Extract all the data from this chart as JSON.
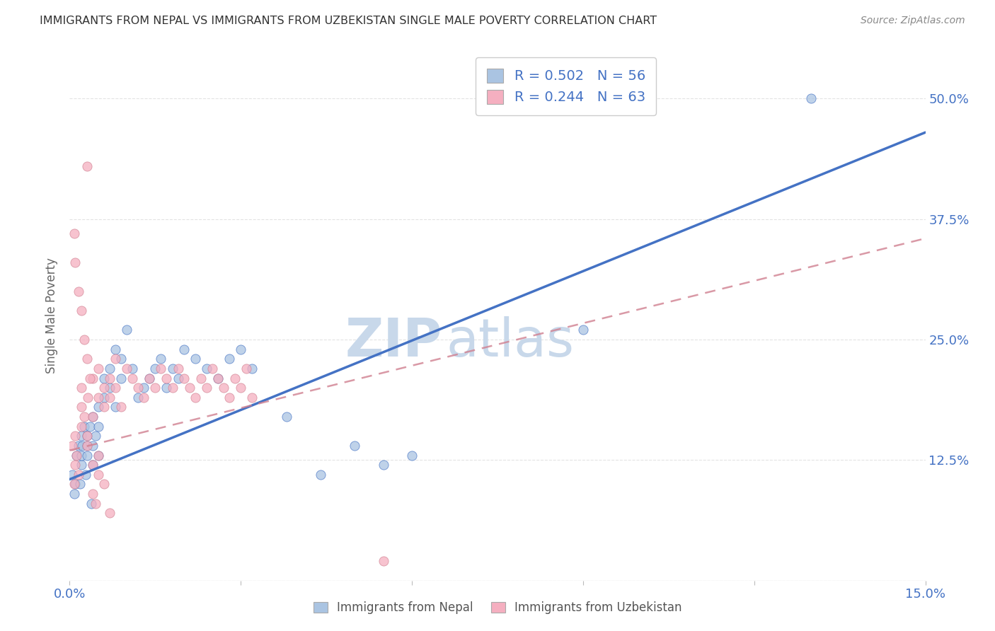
{
  "title": "IMMIGRANTS FROM NEPAL VS IMMIGRANTS FROM UZBEKISTAN SINGLE MALE POVERTY CORRELATION CHART",
  "source": "Source: ZipAtlas.com",
  "ylabel": "Single Male Poverty",
  "legend_label1": "Immigrants from Nepal",
  "legend_label2": "Immigrants from Uzbekistan",
  "r1": 0.502,
  "n1": 56,
  "r2": 0.244,
  "n2": 63,
  "color1": "#aac4e2",
  "color2": "#f5afc0",
  "line_color1": "#4472c4",
  "line_color2": "#d08090",
  "xmin": 0.0,
  "xmax": 0.15,
  "ymin": 0.0,
  "ymax": 0.55,
  "ytick_positions": [
    0.0,
    0.125,
    0.25,
    0.375,
    0.5
  ],
  "ytick_labels": [
    "",
    "12.5%",
    "25.0%",
    "37.5%",
    "50.0%"
  ],
  "xtick_positions": [
    0.0,
    0.03,
    0.06,
    0.09,
    0.12,
    0.15
  ],
  "xtick_labels": [
    "0.0%",
    "",
    "",
    "",
    "",
    "15.0%"
  ],
  "nepal_line_x0": 0.0,
  "nepal_line_y0": 0.105,
  "nepal_line_x1": 0.15,
  "nepal_line_y1": 0.465,
  "uzbek_line_x0": 0.0,
  "uzbek_line_y0": 0.135,
  "uzbek_line_x1": 0.15,
  "uzbek_line_y1": 0.355,
  "watermark": "ZIPatlas",
  "watermark_color": "#c8d8ea",
  "axis_color": "#4472c4",
  "title_color": "#333333",
  "grid_color": "#dddddd",
  "nepal_x": [
    0.0005,
    0.001,
    0.0012,
    0.0015,
    0.002,
    0.002,
    0.002,
    0.0022,
    0.0025,
    0.003,
    0.003,
    0.003,
    0.0035,
    0.004,
    0.004,
    0.004,
    0.0045,
    0.005,
    0.005,
    0.005,
    0.006,
    0.006,
    0.007,
    0.007,
    0.008,
    0.008,
    0.009,
    0.009,
    0.01,
    0.011,
    0.012,
    0.013,
    0.014,
    0.015,
    0.016,
    0.017,
    0.018,
    0.019,
    0.02,
    0.022,
    0.024,
    0.026,
    0.028,
    0.03,
    0.032,
    0.038,
    0.044,
    0.05,
    0.055,
    0.06,
    0.0008,
    0.0018,
    0.0028,
    0.0038,
    0.09,
    0.13
  ],
  "nepal_y": [
    0.11,
    0.1,
    0.13,
    0.14,
    0.12,
    0.13,
    0.15,
    0.14,
    0.16,
    0.13,
    0.14,
    0.15,
    0.16,
    0.12,
    0.14,
    0.17,
    0.15,
    0.13,
    0.16,
    0.18,
    0.19,
    0.21,
    0.2,
    0.22,
    0.18,
    0.24,
    0.21,
    0.23,
    0.26,
    0.22,
    0.19,
    0.2,
    0.21,
    0.22,
    0.23,
    0.2,
    0.22,
    0.21,
    0.24,
    0.23,
    0.22,
    0.21,
    0.23,
    0.24,
    0.22,
    0.17,
    0.11,
    0.14,
    0.12,
    0.13,
    0.09,
    0.1,
    0.11,
    0.08,
    0.26,
    0.5
  ],
  "uzbek_x": [
    0.0005,
    0.0008,
    0.001,
    0.001,
    0.0012,
    0.0015,
    0.002,
    0.002,
    0.002,
    0.0025,
    0.003,
    0.003,
    0.003,
    0.0032,
    0.004,
    0.004,
    0.004,
    0.005,
    0.005,
    0.005,
    0.006,
    0.006,
    0.007,
    0.007,
    0.008,
    0.008,
    0.009,
    0.01,
    0.011,
    0.012,
    0.013,
    0.014,
    0.015,
    0.016,
    0.017,
    0.018,
    0.019,
    0.02,
    0.021,
    0.022,
    0.023,
    0.024,
    0.025,
    0.026,
    0.027,
    0.028,
    0.029,
    0.03,
    0.031,
    0.032,
    0.0008,
    0.001,
    0.0015,
    0.002,
    0.0025,
    0.003,
    0.0035,
    0.004,
    0.0045,
    0.005,
    0.006,
    0.007,
    0.055
  ],
  "uzbek_y": [
    0.14,
    0.1,
    0.12,
    0.15,
    0.13,
    0.11,
    0.16,
    0.18,
    0.2,
    0.17,
    0.15,
    0.14,
    0.43,
    0.19,
    0.12,
    0.17,
    0.21,
    0.13,
    0.19,
    0.22,
    0.2,
    0.18,
    0.21,
    0.19,
    0.2,
    0.23,
    0.18,
    0.22,
    0.21,
    0.2,
    0.19,
    0.21,
    0.2,
    0.22,
    0.21,
    0.2,
    0.22,
    0.21,
    0.2,
    0.19,
    0.21,
    0.2,
    0.22,
    0.21,
    0.2,
    0.19,
    0.21,
    0.2,
    0.22,
    0.19,
    0.36,
    0.33,
    0.3,
    0.28,
    0.25,
    0.23,
    0.21,
    0.09,
    0.08,
    0.11,
    0.1,
    0.07,
    0.02
  ]
}
